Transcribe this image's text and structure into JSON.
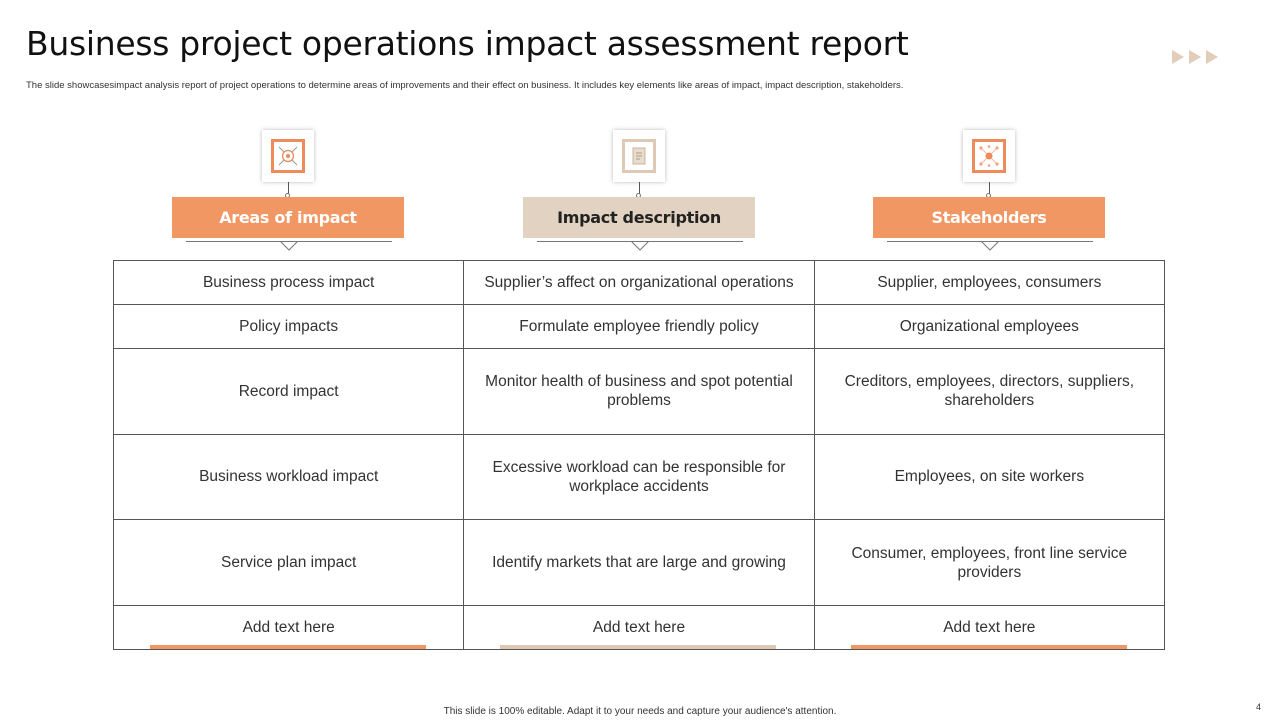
{
  "slide": {
    "title": "Business project operations impact assessment report",
    "subtitle": "The slide showcasesimpact analysis report of project operations to determine  areas of improvements and their effect on business. It includes key elements  like areas of impact, impact description, stakeholders.",
    "footer": "This slide is 100% editable.  Adapt it to your needs and capture your audience's attention.",
    "page_number": "4"
  },
  "colors": {
    "accent_orange": "#f19764",
    "accent_beige": "#e1d2c1",
    "border": "#555555"
  },
  "columns": [
    {
      "label": "Areas of impact",
      "icon": "target-icon",
      "style": "orange"
    },
    {
      "label": "Impact description",
      "icon": "document-icon",
      "style": "beige"
    },
    {
      "label": "Stakeholders",
      "icon": "network-icon",
      "style": "orange"
    }
  ],
  "rows": [
    [
      "Business process impact",
      "Supplier’s affect on organizational operations",
      "Supplier, employees, consumers"
    ],
    [
      "Policy impacts",
      "Formulate employee friendly policy",
      "Organizational employees"
    ],
    [
      "Record impact",
      "Monitor health of business and spot potential problems",
      "Creditors, employees, directors, suppliers, shareholders"
    ],
    [
      "Business workload impact",
      "Excessive workload can be responsible for workplace accidents",
      "Employees, on site workers"
    ],
    [
      "Service plan impact",
      "Identify  markets that are large and growing",
      "Consumer, employees, front line service providers"
    ],
    [
      "Add text here",
      "Add text here",
      "Add text here"
    ]
  ]
}
